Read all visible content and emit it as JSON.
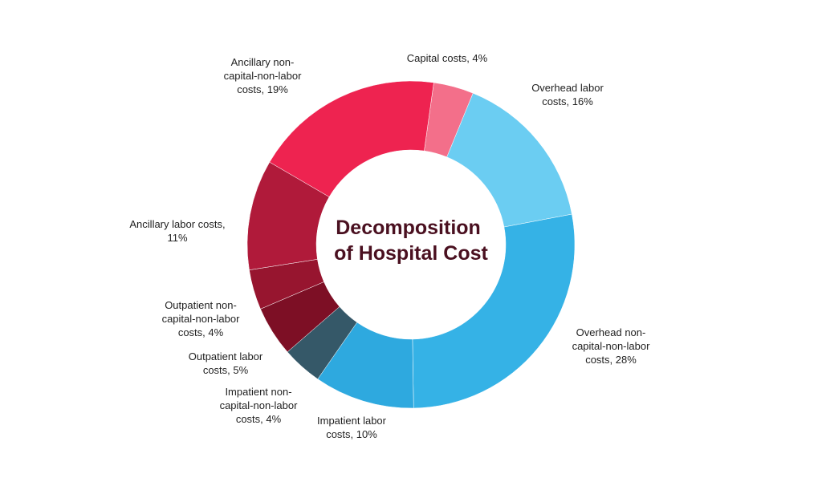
{
  "chart_data": {
    "type": "pie",
    "title": "Decomposition of Hospital Cost",
    "title_lines": [
      "Decomposition",
      "of Hospital Cost"
    ],
    "unit": "%",
    "slices": [
      {
        "label": "Capital costs",
        "value": 4,
        "color": "#f36f8a",
        "label_lines": [
          "Capital costs, 4%"
        ]
      },
      {
        "label": "Overhead labor costs",
        "value": 16,
        "color": "#6bcdf2",
        "label_lines": [
          "Overhead labor",
          "costs, 16%"
        ]
      },
      {
        "label": "Overhead non-capital-non-labor costs",
        "value": 28,
        "color": "#35b2e6",
        "label_lines": [
          "Overhead non-",
          "capital-non-labor",
          "costs, 28%"
        ]
      },
      {
        "label": "Impatient labor costs",
        "value": 10,
        "color": "#2ea9df",
        "label_lines": [
          "Impatient labor",
          "costs, 10%"
        ]
      },
      {
        "label": "Impatient non-capital-non-labor costs",
        "value": 4,
        "color": "#355868",
        "label_lines": [
          "Impatient non-",
          "capital-non-labor",
          "costs, 4%"
        ]
      },
      {
        "label": "Outpatient labor costs",
        "value": 5,
        "color": "#7d0f25",
        "label_lines": [
          "Outpatient labor",
          "costs, 5%"
        ]
      },
      {
        "label": "Outpatient non-capital-non-labor costs",
        "value": 4,
        "color": "#97152f",
        "label_lines": [
          "Outpatient non-",
          "capital-non-labor",
          "costs, 4%"
        ]
      },
      {
        "label": "Ancillary labor costs",
        "value": 11,
        "color": "#b01a3a",
        "label_lines": [
          "Ancillary labor costs,",
          "11%"
        ]
      },
      {
        "label": "Ancillary non-capital-non-labor costs",
        "value": 19,
        "color": "#ee2350",
        "label_lines": [
          "Ancillary non-",
          "capital-non-labor",
          "costs, 19%"
        ]
      }
    ]
  }
}
